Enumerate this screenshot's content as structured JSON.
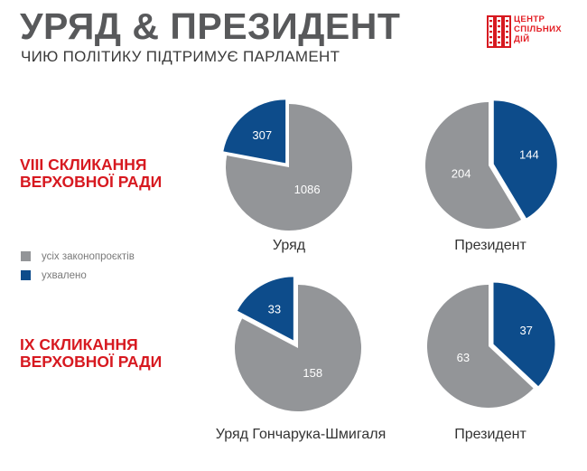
{
  "header": {
    "title": "УРЯД & ПРЕЗИДЕНТ",
    "subtitle": "ЧИЮ ПОЛІТИКУ ПІДТРИМУЄ ПАРЛАМЕНТ"
  },
  "logo": {
    "line1": "ЦЕНТР",
    "line2": "СПІЛЬНИХ",
    "line3": "ДІЙ"
  },
  "convocations": [
    {
      "line1": "VIII СКЛИКАННЯ",
      "line2": "ВЕРХОВНОЇ РАДИ"
    },
    {
      "line1": "IX СКЛИКАННЯ",
      "line2": "ВЕРХОВНОЇ РАДИ"
    }
  ],
  "legend": [
    {
      "label": "усіх законопроєктів",
      "color": "#939598"
    },
    {
      "label": "ухвалено",
      "color": "#0d4c8b"
    }
  ],
  "colors": {
    "gray": "#939598",
    "blue": "#0d4c8b",
    "red": "#d71920"
  },
  "chart_data": [
    {
      "type": "pie",
      "title": "Уряд",
      "labels": [
        "усіх законопроєктів",
        "ухвалено"
      ],
      "values": [
        1086,
        307
      ]
    },
    {
      "type": "pie",
      "title": "Президент",
      "labels": [
        "усіх законопроєктів",
        "ухвалено"
      ],
      "values": [
        204,
        144
      ]
    },
    {
      "type": "pie",
      "title": "Уряд Гончарука-Шмигаля",
      "labels": [
        "усіх законопроєктів",
        "ухвалено"
      ],
      "values": [
        158,
        33
      ]
    },
    {
      "type": "pie",
      "title": "Президент",
      "labels": [
        "усіх законопроєктів",
        "ухвалено"
      ],
      "values": [
        63,
        37
      ]
    }
  ]
}
